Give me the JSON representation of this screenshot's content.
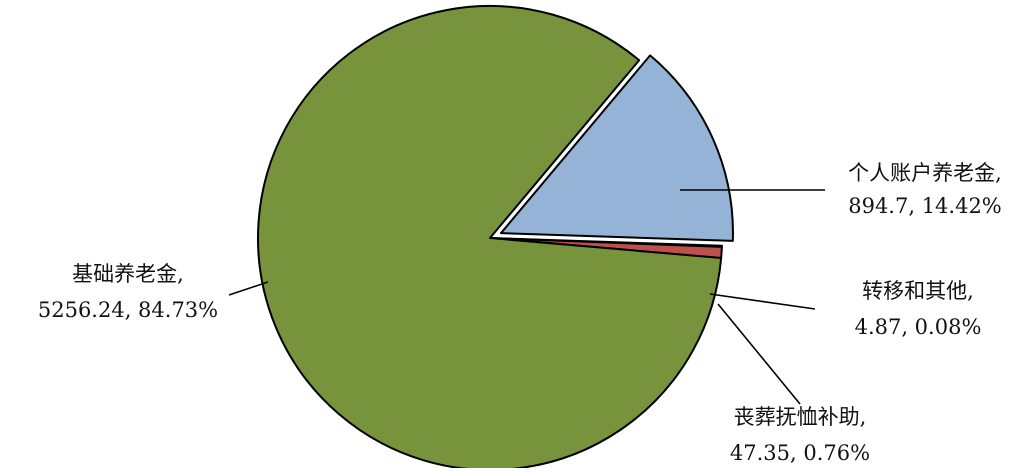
{
  "chart_data": {
    "type": "pie",
    "title": "",
    "slices": [
      {
        "name": "个人账户养老金",
        "value": 894.7,
        "percent": "14.42%",
        "value_label": "894.7",
        "color": "#95b3d7",
        "exploded": true
      },
      {
        "name": "转移和其他",
        "value": 4.87,
        "percent": "0.08%",
        "value_label": "4.87",
        "color": "#8db3e2",
        "exploded": false
      },
      {
        "name": "丧葬抚恤补助",
        "value": 47.35,
        "percent": "0.76%",
        "value_label": "47.35",
        "color": "#c0504d",
        "exploded": false
      },
      {
        "name": "基础养老金",
        "value": 5256.24,
        "percent": "84.73%",
        "value_label": "5256.24",
        "color": "#77933c",
        "exploded": false
      }
    ],
    "legend": "none"
  }
}
